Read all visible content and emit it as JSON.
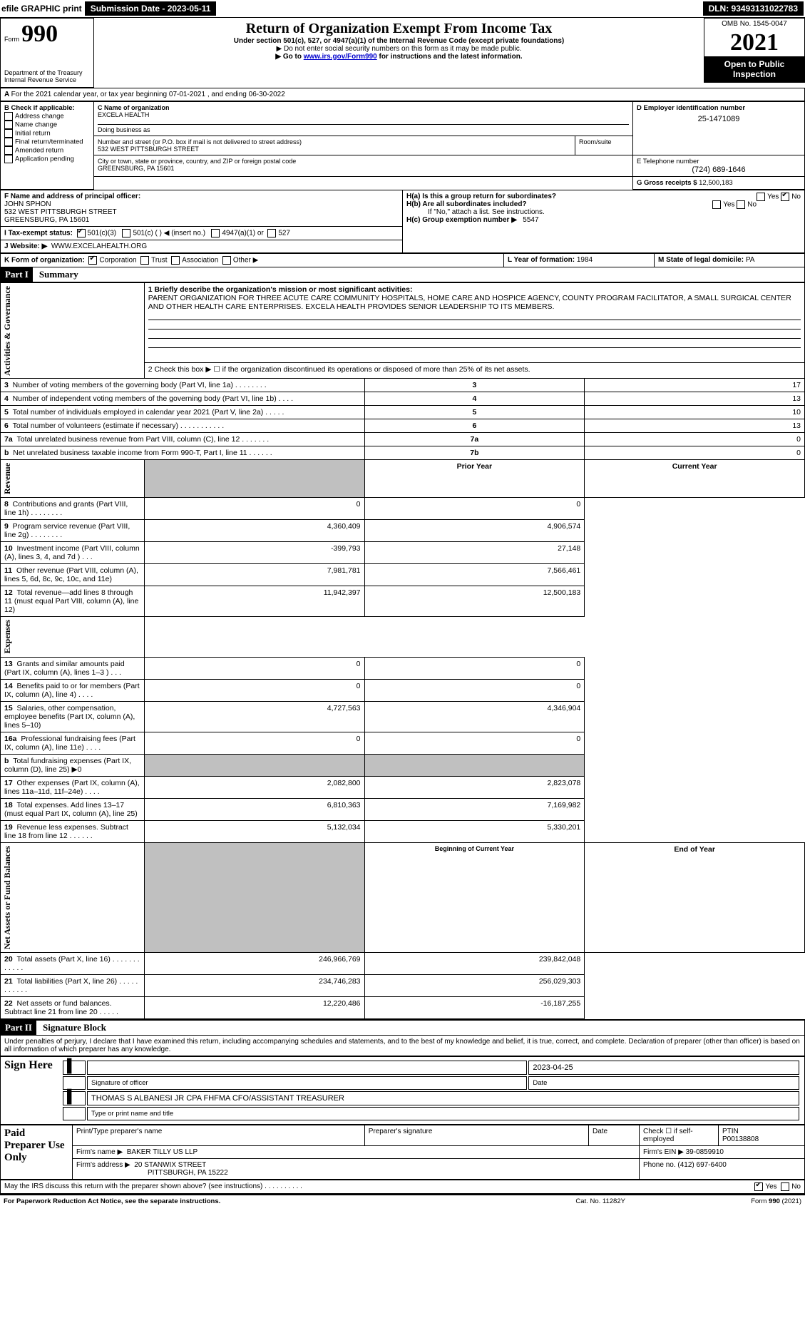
{
  "topbar": {
    "efile_label": "efile GRAPHIC print",
    "submission_label": "Submission Date - 2023-05-11",
    "dln": "DLN: 93493131022783"
  },
  "header": {
    "form_word": "Form",
    "form_number": "990",
    "dept1": "Department of the Treasury",
    "dept2": "Internal Revenue Service",
    "title": "Return of Organization Exempt From Income Tax",
    "sub1": "Under section 501(c), 527, or 4947(a)(1) of the Internal Revenue Code (except private foundations)",
    "sub2": "▶ Do not enter social security numbers on this form as it may be made public.",
    "sub3_prefix": "▶ Go to ",
    "sub3_link": "www.irs.gov/Form990",
    "sub3_suffix": " for instructions and the latest information.",
    "omb": "OMB No. 1545-0047",
    "year": "2021",
    "open_public": "Open to Public Inspection"
  },
  "period": {
    "line": "For the 2021 calendar year, or tax year beginning 07-01-2021    , and ending 06-30-2022"
  },
  "boxB": {
    "title": "B Check if applicable:",
    "opts": [
      "Address change",
      "Name change",
      "Initial return",
      "Final return/terminated",
      "Amended return",
      "Application pending"
    ]
  },
  "boxC": {
    "label": "C Name of organization",
    "name": "EXCELA HEALTH",
    "dba_label": "Doing business as",
    "street_label": "Number and street (or P.O. box if mail is not delivered to street address)",
    "room_label": "Room/suite",
    "street": "532 WEST PITTSBURGH STREET",
    "city_label": "City or town, state or province, country, and ZIP or foreign postal code",
    "city": "GREENSBURG, PA  15601"
  },
  "boxD": {
    "label": "D Employer identification number",
    "value": "25-1471089"
  },
  "boxE": {
    "label": "E Telephone number",
    "value": "(724) 689-1646"
  },
  "boxG": {
    "label": "G Gross receipts $",
    "value": "12,500,183"
  },
  "boxF": {
    "label": "F  Name and address of principal officer:",
    "name": "JOHN SPHON",
    "street": "532 WEST PITTSBURGH STREET",
    "city": "GREENSBURG, PA  15601"
  },
  "boxH": {
    "a_label": "H(a)  Is this a group return for subordinates?",
    "yes": "Yes",
    "no_checked": "No",
    "b_label": "H(b)  Are all subordinates included?",
    "b_yes": "Yes",
    "b_no": "No",
    "b_note": "If \"No,\" attach a list. See instructions.",
    "c_label": "H(c)  Group exemption number ▶",
    "c_value": "5547"
  },
  "boxI": {
    "label": "I    Tax-exempt status:",
    "c3": "501(c)(3)",
    "c_other": "501(c) (    ) ◀ (insert no.)",
    "a1": "4947(a)(1) or",
    "s527": "527"
  },
  "boxJ": {
    "label": "J    Website: ▶",
    "value": "WWW.EXCELAHEALTH.ORG"
  },
  "boxK": {
    "label": "K Form of organization:",
    "corp": "Corporation",
    "trust": "Trust",
    "assoc": "Association",
    "other": "Other ▶"
  },
  "boxL": {
    "label": "L Year of formation:",
    "value": "1984"
  },
  "boxM": {
    "label": "M State of legal domicile:",
    "value": "PA"
  },
  "part1": {
    "header": "Part I",
    "title": "Summary",
    "l1_label": "1  Briefly describe the organization's mission or most significant activities:",
    "l1_text": "PARENT ORGANIZATION FOR THREE ACUTE CARE COMMUNITY HOSPITALS, HOME CARE AND HOSPICE AGENCY, COUNTY PROGRAM FACILITATOR, A SMALL SURGICAL CENTER AND OTHER HEALTH CARE ENTERPRISES. EXCELA HEALTH PROVIDES SENIOR LEADERSHIP TO ITS MEMBERS.",
    "l2": "2   Check this box ▶ ☐  if the organization discontinued its operations or disposed of more than 25% of its net assets.",
    "lines_gov": [
      {
        "n": "3",
        "t": "Number of voting members of the governing body (Part VI, line 1a)   .    .    .    .    .    .    .    .",
        "box": "3",
        "v": "17"
      },
      {
        "n": "4",
        "t": "Number of independent voting members of the governing body (Part VI, line 1b)    .    .    .    .",
        "box": "4",
        "v": "13"
      },
      {
        "n": "5",
        "t": "Total number of individuals employed in calendar year 2021 (Part V, line 2a)   .    .    .    .    .",
        "box": "5",
        "v": "10"
      },
      {
        "n": "6",
        "t": "Total number of volunteers (estimate if necessary)    .    .    .    .    .    .    .    .    .    .    .",
        "box": "6",
        "v": "13"
      },
      {
        "n": "7a",
        "t": "Total unrelated business revenue from Part VIII, column (C), line 12   .    .    .    .    .    .    .",
        "box": "7a",
        "v": "0"
      },
      {
        "n": " b",
        "t": "Net unrelated business taxable income from Form 990-T, Part I, line 11    .    .    .    .    .    .",
        "box": "7b",
        "v": "0"
      }
    ],
    "prior_label": "Prior Year",
    "current_label": "Current Year",
    "rev": [
      {
        "n": "8",
        "t": "Contributions and grants (Part VIII, line 1h)   .    .    .    .    .    .    .    .",
        "p": "0",
        "c": "0"
      },
      {
        "n": "9",
        "t": "Program service revenue (Part VIII, line 2g)   .    .    .    .    .    .    .    .",
        "p": "4,360,409",
        "c": "4,906,574"
      },
      {
        "n": "10",
        "t": "Investment income (Part VIII, column (A), lines 3, 4, and 7d )    .    .    .",
        "p": "-399,793",
        "c": "27,148"
      },
      {
        "n": "11",
        "t": "Other revenue (Part VIII, column (A), lines 5, 6d, 8c, 9c, 10c, and 11e)",
        "p": "7,981,781",
        "c": "7,566,461"
      },
      {
        "n": "12",
        "t": "Total revenue—add lines 8 through 11 (must equal Part VIII, column (A), line 12)",
        "p": "11,942,397",
        "c": "12,500,183"
      }
    ],
    "exp": [
      {
        "n": "13",
        "t": "Grants and similar amounts paid (Part IX, column (A), lines 1–3 )  .    .    .",
        "p": "0",
        "c": "0"
      },
      {
        "n": "14",
        "t": "Benefits paid to or for members (Part IX, column (A), line 4)   .    .    .    .",
        "p": "0",
        "c": "0"
      },
      {
        "n": "15",
        "t": "Salaries, other compensation, employee benefits (Part IX, column (A), lines 5–10)",
        "p": "4,727,563",
        "c": "4,346,904"
      },
      {
        "n": "16a",
        "t": "Professional fundraising fees (Part IX, column (A), line 11e)   .    .    .    .",
        "p": "0",
        "c": "0"
      },
      {
        "n": "  b",
        "t": "Total fundraising expenses (Part IX, column (D), line 25) ▶0",
        "p": "",
        "c": "",
        "shaded": true
      },
      {
        "n": "17",
        "t": "Other expenses (Part IX, column (A), lines 11a–11d, 11f–24e)   .    .    .    .",
        "p": "2,082,800",
        "c": "2,823,078"
      },
      {
        "n": "18",
        "t": "Total expenses. Add lines 13–17 (must equal Part IX, column (A), line 25)",
        "p": "6,810,363",
        "c": "7,169,982"
      },
      {
        "n": "19",
        "t": "Revenue less expenses. Subtract line 18 from line 12   .    .    .    .    .    .",
        "p": "5,132,034",
        "c": "5,330,201"
      }
    ],
    "boy_label": "Beginning of Current Year",
    "eoy_label": "End of Year",
    "net": [
      {
        "n": "20",
        "t": "Total assets (Part X, line 16)   .    .    .    .    .    .    .    .    .    .    .    .",
        "p": "246,966,769",
        "c": "239,842,048"
      },
      {
        "n": "21",
        "t": "Total liabilities (Part X, line 26)    .    .    .    .    .    .    .    .    .    .    .",
        "p": "234,746,283",
        "c": "256,029,303"
      },
      {
        "n": "22",
        "t": "Net assets or fund balances. Subtract line 21 from line 20   .    .    .    .    .",
        "p": "12,220,486",
        "c": "-16,187,255"
      }
    ],
    "side_gov": "Activities & Governance",
    "side_rev": "Revenue",
    "side_exp": "Expenses",
    "side_net": "Net Assets or Fund Balances"
  },
  "part2": {
    "header": "Part II",
    "title": "Signature Block",
    "decl": "Under penalties of perjury, I declare that I have examined this return, including accompanying schedules and statements, and to the best of my knowledge and belief, it is true, correct, and complete. Declaration of preparer (other than officer) is based on all information of which preparer has any knowledge.",
    "sign_here": "Sign Here",
    "sig_off": "Signature of officer",
    "date_label": "Date",
    "date_val": "2023-04-25",
    "name_title": "THOMAS S ALBANESI JR CPA FHFMA  CFO/ASSISTANT TREASURER",
    "name_label": "Type or print name and title"
  },
  "paid": {
    "label": "Paid Preparer Use Only",
    "col_name": "Print/Type preparer's name",
    "col_sig": "Preparer's signature",
    "col_date": "Date",
    "col_check": "Check ☐ if self-employed",
    "ptin_label": "PTIN",
    "ptin": "P00138808",
    "firm_name_label": "Firm's name    ▶",
    "firm_name": "BAKER TILLY US LLP",
    "firm_ein_label": "Firm's EIN ▶",
    "firm_ein": "39-0859910",
    "firm_addr_label": "Firm's address ▶",
    "firm_addr1": "20 STANWIX STREET",
    "firm_addr2": "PITTSBURGH, PA  15222",
    "phone_label": "Phone no.",
    "phone": "(412) 697-6400"
  },
  "footer": {
    "discuss": "May the IRS discuss this return with the preparer shown above? (see instructions)    .    .    .    .    .    .    .    .    .    .",
    "yes": "Yes",
    "no": "No",
    "pra": "For Paperwork Reduction Act Notice, see the separate instructions.",
    "cat": "Cat. No. 11282Y",
    "form": "Form 990 (2021)"
  }
}
